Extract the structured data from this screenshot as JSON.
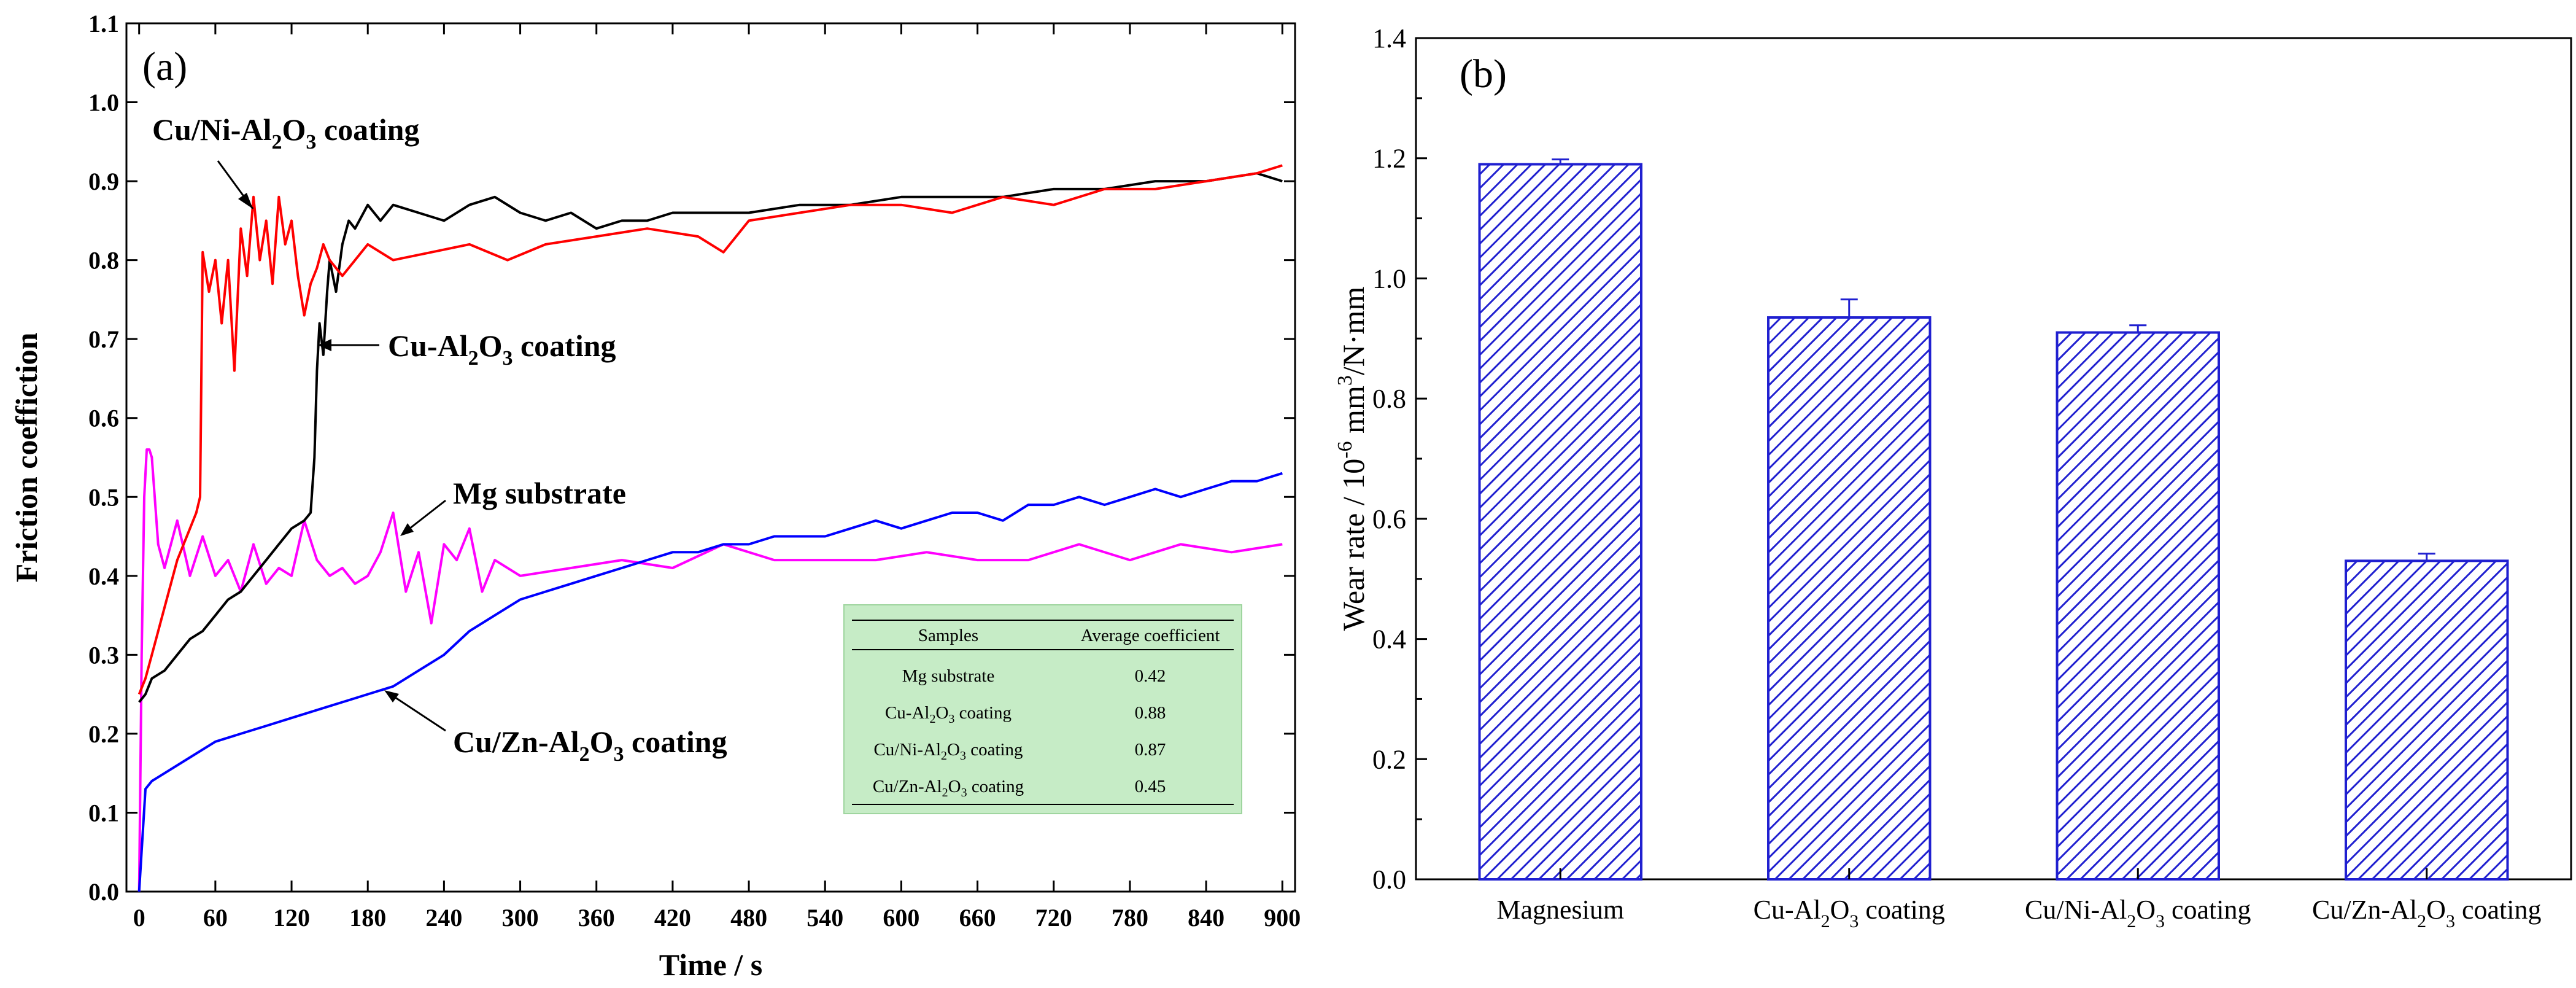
{
  "panel_a": {
    "label": "(a)",
    "chart_data": {
      "type": "line",
      "xlabel": "Time / s",
      "ylabel": "Friction coeffiction",
      "xlim": [
        -10,
        910
      ],
      "ylim": [
        0.0,
        1.1
      ],
      "xticks": [
        0,
        60,
        120,
        180,
        240,
        300,
        360,
        420,
        480,
        540,
        600,
        660,
        720,
        780,
        840,
        900
      ],
      "yticks": [
        0.0,
        0.1,
        0.2,
        0.3,
        0.4,
        0.5,
        0.6,
        0.7,
        0.8,
        0.9,
        1.0,
        1.1
      ],
      "grid": false,
      "series": [
        {
          "name": "Cu/Ni-Al2O3 coating",
          "color": "#ff0000",
          "x": [
            0,
            5,
            10,
            20,
            30,
            40,
            45,
            48,
            50,
            55,
            60,
            65,
            70,
            75,
            80,
            85,
            90,
            95,
            100,
            105,
            110,
            115,
            120,
            125,
            130,
            135,
            140,
            145,
            150,
            160,
            170,
            180,
            200,
            230,
            260,
            290,
            320,
            360,
            400,
            440,
            460,
            480,
            520,
            560,
            600,
            640,
            680,
            720,
            760,
            800,
            840,
            880,
            900
          ],
          "y": [
            0.25,
            0.27,
            0.3,
            0.36,
            0.42,
            0.46,
            0.48,
            0.5,
            0.81,
            0.76,
            0.8,
            0.72,
            0.8,
            0.66,
            0.84,
            0.78,
            0.88,
            0.8,
            0.85,
            0.77,
            0.88,
            0.82,
            0.85,
            0.78,
            0.73,
            0.77,
            0.79,
            0.82,
            0.8,
            0.78,
            0.8,
            0.82,
            0.8,
            0.81,
            0.82,
            0.8,
            0.82,
            0.83,
            0.84,
            0.83,
            0.81,
            0.85,
            0.86,
            0.87,
            0.87,
            0.86,
            0.88,
            0.87,
            0.89,
            0.89,
            0.9,
            0.91,
            0.92
          ]
        },
        {
          "name": "Cu-Al2O3 coating",
          "color": "#000000",
          "x": [
            0,
            5,
            10,
            20,
            30,
            40,
            50,
            60,
            70,
            80,
            90,
            100,
            110,
            120,
            130,
            135,
            138,
            140,
            142,
            145,
            148,
            150,
            155,
            160,
            165,
            170,
            180,
            190,
            200,
            220,
            240,
            260,
            280,
            300,
            320,
            340,
            360,
            380,
            400,
            420,
            440,
            480,
            520,
            560,
            600,
            640,
            680,
            720,
            760,
            800,
            840,
            880,
            900
          ],
          "y": [
            0.24,
            0.25,
            0.27,
            0.28,
            0.3,
            0.32,
            0.33,
            0.35,
            0.37,
            0.38,
            0.4,
            0.42,
            0.44,
            0.46,
            0.47,
            0.48,
            0.55,
            0.66,
            0.72,
            0.68,
            0.76,
            0.8,
            0.76,
            0.82,
            0.85,
            0.84,
            0.87,
            0.85,
            0.87,
            0.86,
            0.85,
            0.87,
            0.88,
            0.86,
            0.85,
            0.86,
            0.84,
            0.85,
            0.85,
            0.86,
            0.86,
            0.86,
            0.87,
            0.87,
            0.88,
            0.88,
            0.88,
            0.89,
            0.89,
            0.9,
            0.9,
            0.91,
            0.9
          ]
        },
        {
          "name": "Mg substrate",
          "color": "#ff00ff",
          "x": [
            0,
            2,
            4,
            6,
            8,
            10,
            15,
            20,
            30,
            40,
            50,
            60,
            70,
            80,
            90,
            100,
            110,
            120,
            130,
            140,
            150,
            160,
            170,
            180,
            190,
            200,
            210,
            220,
            230,
            240,
            250,
            260,
            270,
            280,
            300,
            340,
            380,
            420,
            460,
            500,
            540,
            580,
            620,
            660,
            700,
            740,
            780,
            820,
            860,
            900
          ],
          "y": [
            0.0,
            0.3,
            0.5,
            0.56,
            0.56,
            0.55,
            0.44,
            0.41,
            0.47,
            0.4,
            0.45,
            0.4,
            0.42,
            0.38,
            0.44,
            0.39,
            0.41,
            0.4,
            0.47,
            0.42,
            0.4,
            0.41,
            0.39,
            0.4,
            0.43,
            0.48,
            0.38,
            0.43,
            0.34,
            0.44,
            0.42,
            0.46,
            0.38,
            0.42,
            0.4,
            0.41,
            0.42,
            0.41,
            0.44,
            0.42,
            0.42,
            0.42,
            0.43,
            0.42,
            0.42,
            0.44,
            0.42,
            0.44,
            0.43,
            0.44
          ]
        },
        {
          "name": "Cu/Zn-Al2O3 coating",
          "color": "#0000ff",
          "x": [
            0,
            5,
            10,
            20,
            40,
            60,
            80,
            100,
            120,
            140,
            160,
            180,
            200,
            220,
            240,
            260,
            280,
            300,
            320,
            340,
            360,
            380,
            400,
            420,
            440,
            460,
            480,
            500,
            520,
            540,
            560,
            580,
            600,
            620,
            640,
            660,
            680,
            700,
            720,
            740,
            760,
            780,
            800,
            820,
            840,
            860,
            880,
            900
          ],
          "y": [
            0.0,
            0.13,
            0.14,
            0.15,
            0.17,
            0.19,
            0.2,
            0.21,
            0.22,
            0.23,
            0.24,
            0.25,
            0.26,
            0.28,
            0.3,
            0.33,
            0.35,
            0.37,
            0.38,
            0.39,
            0.4,
            0.41,
            0.42,
            0.43,
            0.43,
            0.44,
            0.44,
            0.45,
            0.45,
            0.45,
            0.46,
            0.47,
            0.46,
            0.47,
            0.48,
            0.48,
            0.47,
            0.49,
            0.49,
            0.5,
            0.49,
            0.5,
            0.51,
            0.5,
            0.51,
            0.52,
            0.52,
            0.53
          ]
        }
      ],
      "annotations": [
        {
          "text": "Cu/Ni-Al",
          "sub": "2",
          "mid": "O",
          "sub2": "3",
          "tail": " coating"
        },
        {
          "text": "Cu-Al",
          "sub": "2",
          "mid": "O",
          "sub2": "3",
          "tail": " coating"
        },
        {
          "text": "Mg substrate"
        },
        {
          "text": "Cu/Zn-Al",
          "sub": "2",
          "mid": "O",
          "sub2": "3",
          "tail": " coating"
        }
      ],
      "inset_table": {
        "headers": [
          "Samples",
          "Average coefficient"
        ],
        "rows": [
          [
            "Mg substrate",
            "0.42"
          ],
          [
            "Cu-Al2O3 coating",
            "0.88"
          ],
          [
            "Cu/Ni-Al2O3 coating",
            "0.87"
          ],
          [
            "Cu/Zn-Al2O3 coating",
            "0.45"
          ]
        ],
        "background": "#c6ecc6"
      }
    }
  },
  "panel_b": {
    "label": "(b)",
    "chart_data": {
      "type": "bar",
      "ylabel_prefix": "Wear rate / 10",
      "ylabel_sup1": "-6",
      "ylabel_mid": " mm",
      "ylabel_sup2": "3",
      "ylabel_tail": "/N·mm",
      "ylim": [
        0.0,
        1.4
      ],
      "yticks": [
        0.0,
        0.2,
        0.4,
        0.6,
        0.8,
        1.0,
        1.2,
        1.4
      ],
      "grid": false,
      "bar_color": "#2020d0",
      "fill_pattern": "diagonal-hatch",
      "categories": [
        {
          "main": "Magnesium"
        },
        {
          "main": "Cu-Al",
          "sub": "2",
          "mid": "O",
          "sub2": "3",
          "tail": " coating"
        },
        {
          "main": "Cu/Ni-Al",
          "sub": "2",
          "mid": "O",
          "sub2": "3",
          "tail": " coating"
        },
        {
          "main": "Cu/Zn-Al",
          "sub": "2",
          "mid": "O",
          "sub2": "3",
          "tail": " coating"
        }
      ],
      "values": [
        1.19,
        0.935,
        0.91,
        0.53
      ],
      "errors": [
        0.008,
        0.03,
        0.012,
        0.012
      ]
    }
  }
}
